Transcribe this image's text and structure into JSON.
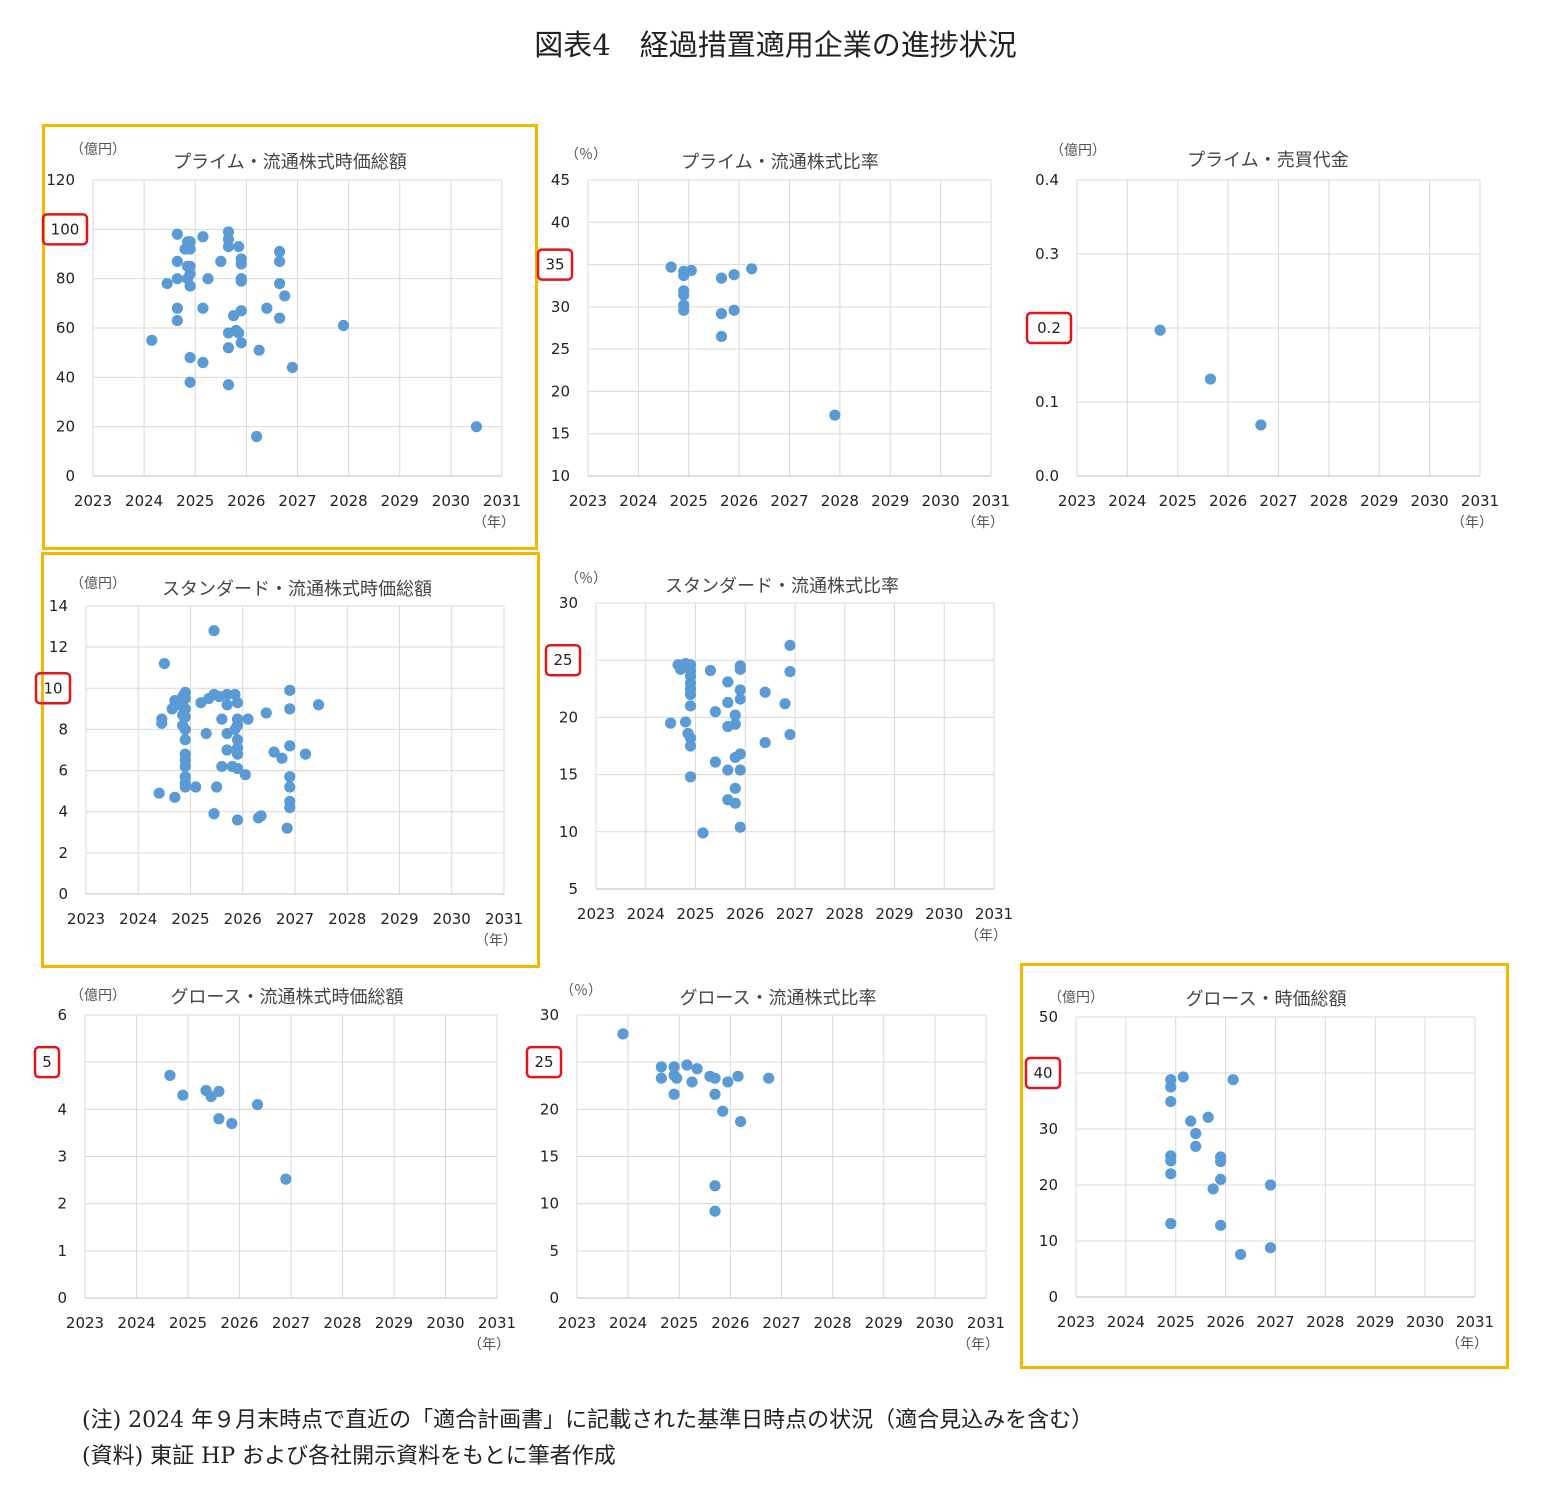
{
  "title": "図表4　経過措置適用企業の進捗状況",
  "notes": {
    "note1": "(注) 2024 年９月末時点で直近の「適合計画書」に記載された基準日時点の状況（適合見込みを含む）",
    "note2": "(資料) 東証 HP および各社開示資料をもとに筆者作成"
  },
  "colors": {
    "marker": "#5b9bd5",
    "highlight_frame": "#f5b800",
    "highlight_tick": "#e0161b",
    "grid": "#d9d9d9"
  },
  "chart_data": [
    {
      "id": "prime-float-mcap",
      "type": "scatter",
      "title": "プライム・流通株式時価総額",
      "unit": "（億円）",
      "xlabel": "（年）",
      "xlim": [
        2023,
        2031
      ],
      "ylim": [
        0,
        120
      ],
      "xticks": [
        2023,
        2024,
        2025,
        2026,
        2027,
        2028,
        2029,
        2030,
        2031
      ],
      "yticks": [
        0,
        20,
        40,
        60,
        80,
        100,
        120
      ],
      "ytick_labels": [
        "0",
        "20",
        "40",
        "60",
        "80",
        "100",
        "120"
      ],
      "highlight_tick": "100",
      "highlighted_chart": true,
      "points": [
        [
          2024.15,
          55
        ],
        [
          2024.45,
          78
        ],
        [
          2024.65,
          98
        ],
        [
          2024.65,
          87
        ],
        [
          2024.65,
          80
        ],
        [
          2024.65,
          68
        ],
        [
          2024.65,
          63
        ],
        [
          2024.8,
          92
        ],
        [
          2024.85,
          95
        ],
        [
          2024.85,
          85
        ],
        [
          2024.85,
          80
        ],
        [
          2024.9,
          95
        ],
        [
          2024.9,
          92
        ],
        [
          2024.9,
          85
        ],
        [
          2024.9,
          82
        ],
        [
          2024.9,
          77
        ],
        [
          2024.9,
          48
        ],
        [
          2024.9,
          38
        ],
        [
          2025.15,
          97
        ],
        [
          2025.15,
          68
        ],
        [
          2025.15,
          46
        ],
        [
          2025.25,
          80
        ],
        [
          2025.5,
          87
        ],
        [
          2025.65,
          99
        ],
        [
          2025.65,
          96
        ],
        [
          2025.65,
          93
        ],
        [
          2025.65,
          58
        ],
        [
          2025.65,
          52
        ],
        [
          2025.65,
          37
        ],
        [
          2025.75,
          65
        ],
        [
          2025.8,
          59
        ],
        [
          2025.85,
          93
        ],
        [
          2025.85,
          58
        ],
        [
          2025.9,
          88
        ],
        [
          2025.9,
          86
        ],
        [
          2025.9,
          80
        ],
        [
          2025.9,
          79
        ],
        [
          2025.9,
          67
        ],
        [
          2025.9,
          54
        ],
        [
          2026.2,
          16
        ],
        [
          2026.25,
          51
        ],
        [
          2026.4,
          68
        ],
        [
          2026.65,
          91
        ],
        [
          2026.65,
          87
        ],
        [
          2026.65,
          78
        ],
        [
          2026.65,
          64
        ],
        [
          2026.75,
          73
        ],
        [
          2026.9,
          44
        ],
        [
          2027.9,
          61
        ],
        [
          2030.5,
          20
        ]
      ]
    },
    {
      "id": "prime-float-ratio",
      "type": "scatter",
      "title": "プライム・流通株式比率",
      "unit": "（％）",
      "xlabel": "（年）",
      "xlim": [
        2023,
        2031
      ],
      "ylim": [
        10,
        45
      ],
      "xticks": [
        2023,
        2024,
        2025,
        2026,
        2027,
        2028,
        2029,
        2030,
        2031
      ],
      "yticks": [
        10,
        15,
        20,
        25,
        30,
        35,
        40,
        45
      ],
      "ytick_labels": [
        "10",
        "15",
        "20",
        "25",
        "30",
        "35",
        "40",
        "45"
      ],
      "highlight_tick": "35",
      "highlighted_chart": false,
      "points": [
        [
          2024.65,
          34.7
        ],
        [
          2024.9,
          34.2
        ],
        [
          2024.9,
          33.7
        ],
        [
          2024.9,
          31.9
        ],
        [
          2024.9,
          31.4
        ],
        [
          2024.9,
          30.2
        ],
        [
          2024.9,
          29.6
        ],
        [
          2025.05,
          34.3
        ],
        [
          2025.65,
          33.4
        ],
        [
          2025.65,
          29.2
        ],
        [
          2025.65,
          26.5
        ],
        [
          2025.9,
          33.8
        ],
        [
          2025.9,
          29.6
        ],
        [
          2026.25,
          34.5
        ],
        [
          2027.9,
          17.2
        ]
      ]
    },
    {
      "id": "prime-trading-value",
      "type": "scatter",
      "title": "プライム・売買代金",
      "unit": "（億円）",
      "xlabel": "（年）",
      "xlim": [
        2023,
        2031
      ],
      "ylim": [
        0,
        0.4
      ],
      "xticks": [
        2023,
        2024,
        2025,
        2026,
        2027,
        2028,
        2029,
        2030,
        2031
      ],
      "yticks": [
        0,
        0.1,
        0.2,
        0.3,
        0.4
      ],
      "ytick_labels": [
        "0.0",
        "0.1",
        "0.2",
        "0.3",
        "0.4"
      ],
      "highlight_tick": "0.2",
      "highlighted_chart": false,
      "points": [
        [
          2024.65,
          0.197
        ],
        [
          2025.65,
          0.131
        ],
        [
          2026.65,
          0.069
        ]
      ]
    },
    {
      "id": "standard-float-mcap",
      "type": "scatter",
      "title": "スタンダード・流通株式時価総額",
      "unit": "（億円）",
      "xlabel": "（年）",
      "xlim": [
        2023,
        2031
      ],
      "ylim": [
        0,
        14
      ],
      "xticks": [
        2023,
        2024,
        2025,
        2026,
        2027,
        2028,
        2029,
        2030,
        2031
      ],
      "yticks": [
        0,
        2,
        4,
        6,
        8,
        10,
        12,
        14
      ],
      "ytick_labels": [
        "0",
        "2",
        "4",
        "6",
        "8",
        "10",
        "12",
        "14"
      ],
      "highlight_tick": "10",
      "highlighted_chart": true,
      "points": [
        [
          2024.4,
          4.9
        ],
        [
          2024.45,
          8.3
        ],
        [
          2024.45,
          8.5
        ],
        [
          2024.5,
          11.2
        ],
        [
          2024.65,
          9.0
        ],
        [
          2024.7,
          9.4
        ],
        [
          2024.7,
          4.7
        ],
        [
          2024.8,
          9.2
        ],
        [
          2024.85,
          9.6
        ],
        [
          2024.85,
          8.7
        ],
        [
          2024.85,
          8.2
        ],
        [
          2024.9,
          9.8
        ],
        [
          2024.9,
          9.5
        ],
        [
          2024.9,
          9.0
        ],
        [
          2024.9,
          8.6
        ],
        [
          2024.9,
          8.0
        ],
        [
          2024.9,
          7.5
        ],
        [
          2024.9,
          6.8
        ],
        [
          2024.9,
          6.5
        ],
        [
          2024.9,
          6.2
        ],
        [
          2024.9,
          5.7
        ],
        [
          2024.9,
          5.4
        ],
        [
          2024.9,
          5.2
        ],
        [
          2025.1,
          5.2
        ],
        [
          2025.2,
          9.3
        ],
        [
          2025.3,
          7.8
        ],
        [
          2025.35,
          9.5
        ],
        [
          2025.45,
          9.7
        ],
        [
          2025.45,
          12.8
        ],
        [
          2025.45,
          3.9
        ],
        [
          2025.5,
          5.2
        ],
        [
          2025.55,
          9.6
        ],
        [
          2025.6,
          8.5
        ],
        [
          2025.6,
          6.2
        ],
        [
          2025.7,
          9.7
        ],
        [
          2025.7,
          9.2
        ],
        [
          2025.7,
          7.8
        ],
        [
          2025.7,
          7.0
        ],
        [
          2025.8,
          6.2
        ],
        [
          2025.85,
          9.7
        ],
        [
          2025.85,
          8.0
        ],
        [
          2025.9,
          9.3
        ],
        [
          2025.9,
          8.5
        ],
        [
          2025.9,
          8.2
        ],
        [
          2025.9,
          7.5
        ],
        [
          2025.9,
          7.1
        ],
        [
          2025.9,
          6.8
        ],
        [
          2025.9,
          6.1
        ],
        [
          2025.9,
          3.6
        ],
        [
          2026.05,
          5.8
        ],
        [
          2026.1,
          8.5
        ],
        [
          2026.3,
          3.7
        ],
        [
          2026.35,
          3.8
        ],
        [
          2026.45,
          8.8
        ],
        [
          2026.6,
          6.9
        ],
        [
          2026.75,
          6.6
        ],
        [
          2026.85,
          3.2
        ],
        [
          2026.9,
          9.9
        ],
        [
          2026.9,
          9.0
        ],
        [
          2026.9,
          7.2
        ],
        [
          2026.9,
          5.7
        ],
        [
          2026.9,
          5.2
        ],
        [
          2026.9,
          4.5
        ],
        [
          2026.9,
          4.2
        ],
        [
          2027.2,
          6.8
        ],
        [
          2027.45,
          9.2
        ]
      ]
    },
    {
      "id": "standard-float-ratio",
      "type": "scatter",
      "title": "スタンダード・流通株式比率",
      "unit": "（％）",
      "xlabel": "（年）",
      "xlim": [
        2023,
        2031
      ],
      "ylim": [
        5,
        30
      ],
      "xticks": [
        2023,
        2024,
        2025,
        2026,
        2027,
        2028,
        2029,
        2030,
        2031
      ],
      "yticks": [
        5,
        10,
        15,
        20,
        25,
        30
      ],
      "ytick_labels": [
        "5",
        "10",
        "15",
        "20",
        "25",
        "30"
      ],
      "highlight_tick": "25",
      "highlighted_chart": false,
      "points": [
        [
          2024.5,
          19.5
        ],
        [
          2024.65,
          24.6
        ],
        [
          2024.7,
          24.2
        ],
        [
          2024.8,
          24.7
        ],
        [
          2024.8,
          19.6
        ],
        [
          2024.85,
          24.5
        ],
        [
          2024.85,
          18.6
        ],
        [
          2024.9,
          24.6
        ],
        [
          2024.9,
          24.1
        ],
        [
          2024.9,
          23.6
        ],
        [
          2024.9,
          23.0
        ],
        [
          2024.9,
          22.5
        ],
        [
          2024.9,
          22.0
        ],
        [
          2024.9,
          21.0
        ],
        [
          2024.9,
          18.2
        ],
        [
          2024.9,
          17.5
        ],
        [
          2024.9,
          14.8
        ],
        [
          2025.15,
          9.9
        ],
        [
          2025.3,
          24.1
        ],
        [
          2025.4,
          20.5
        ],
        [
          2025.4,
          16.1
        ],
        [
          2025.65,
          23.1
        ],
        [
          2025.65,
          21.3
        ],
        [
          2025.65,
          19.2
        ],
        [
          2025.65,
          15.4
        ],
        [
          2025.65,
          12.8
        ],
        [
          2025.8,
          20.2
        ],
        [
          2025.8,
          19.4
        ],
        [
          2025.8,
          16.5
        ],
        [
          2025.8,
          13.8
        ],
        [
          2025.8,
          12.5
        ],
        [
          2025.9,
          24.5
        ],
        [
          2025.9,
          24.2
        ],
        [
          2025.9,
          22.4
        ],
        [
          2025.9,
          21.6
        ],
        [
          2025.9,
          16.8
        ],
        [
          2025.9,
          15.4
        ],
        [
          2025.9,
          10.4
        ],
        [
          2026.4,
          22.2
        ],
        [
          2026.4,
          17.8
        ],
        [
          2026.8,
          21.2
        ],
        [
          2026.9,
          26.3
        ],
        [
          2026.9,
          24.0
        ],
        [
          2026.9,
          18.5
        ]
      ]
    },
    {
      "id": "growth-float-mcap",
      "type": "scatter",
      "title": "グロース・流通株式時価総額",
      "unit": "（億円）",
      "xlabel": "（年）",
      "xlim": [
        2023,
        2031
      ],
      "ylim": [
        0,
        6
      ],
      "xticks": [
        2023,
        2024,
        2025,
        2026,
        2027,
        2028,
        2029,
        2030,
        2031
      ],
      "yticks": [
        0,
        1,
        2,
        3,
        4,
        5,
        6
      ],
      "ytick_labels": [
        "0",
        "1",
        "2",
        "3",
        "4",
        "5",
        "6"
      ],
      "highlight_tick": "5",
      "highlighted_chart": false,
      "points": [
        [
          2024.65,
          4.72
        ],
        [
          2024.9,
          4.3
        ],
        [
          2025.35,
          4.4
        ],
        [
          2025.45,
          4.27
        ],
        [
          2025.6,
          4.38
        ],
        [
          2025.6,
          3.8
        ],
        [
          2025.85,
          3.7
        ],
        [
          2026.35,
          4.1
        ],
        [
          2026.9,
          2.52
        ]
      ]
    },
    {
      "id": "growth-float-ratio",
      "type": "scatter",
      "title": "グロース・流通株式比率",
      "unit": "（％）",
      "xlabel": "（年）",
      "xlim": [
        2023,
        2031
      ],
      "ylim": [
        0,
        30
      ],
      "xticks": [
        2023,
        2024,
        2025,
        2026,
        2027,
        2028,
        2029,
        2030,
        2031
      ],
      "yticks": [
        0,
        5,
        10,
        15,
        20,
        25,
        30
      ],
      "ytick_labels": [
        "0",
        "5",
        "10",
        "15",
        "20",
        "25",
        "30"
      ],
      "highlight_tick": "25",
      "highlighted_chart": false,
      "points": [
        [
          2023.9,
          28.0
        ],
        [
          2024.65,
          24.5
        ],
        [
          2024.65,
          23.3
        ],
        [
          2024.9,
          24.5
        ],
        [
          2024.9,
          23.6
        ],
        [
          2024.9,
          21.6
        ],
        [
          2024.95,
          23.3
        ],
        [
          2025.15,
          24.7
        ],
        [
          2025.25,
          22.9
        ],
        [
          2025.35,
          24.3
        ],
        [
          2025.6,
          23.5
        ],
        [
          2025.7,
          23.3
        ],
        [
          2025.7,
          21.6
        ],
        [
          2025.7,
          11.9
        ],
        [
          2025.7,
          9.2
        ],
        [
          2025.85,
          19.8
        ],
        [
          2025.95,
          22.9
        ],
        [
          2026.15,
          23.5
        ],
        [
          2026.2,
          18.7
        ],
        [
          2026.75,
          23.3
        ]
      ]
    },
    {
      "id": "growth-mcap",
      "type": "scatter",
      "title": "グロース・時価総額",
      "unit": "（億円）",
      "xlabel": "（年）",
      "xlim": [
        2023,
        2031
      ],
      "ylim": [
        0,
        50
      ],
      "xticks": [
        2023,
        2024,
        2025,
        2026,
        2027,
        2028,
        2029,
        2030,
        2031
      ],
      "yticks": [
        0,
        10,
        20,
        30,
        40,
        50
      ],
      "ytick_labels": [
        "0",
        "10",
        "20",
        "30",
        "40",
        "50"
      ],
      "highlight_tick": "40",
      "highlighted_chart": true,
      "points": [
        [
          2024.9,
          38.8
        ],
        [
          2024.9,
          37.5
        ],
        [
          2024.9,
          34.9
        ],
        [
          2024.9,
          25.2
        ],
        [
          2024.9,
          24.3
        ],
        [
          2024.9,
          22.0
        ],
        [
          2024.9,
          13.1
        ],
        [
          2025.15,
          39.3
        ],
        [
          2025.3,
          31.4
        ],
        [
          2025.4,
          29.2
        ],
        [
          2025.4,
          26.9
        ],
        [
          2025.65,
          32.1
        ],
        [
          2025.75,
          19.3
        ],
        [
          2025.9,
          25.0
        ],
        [
          2025.9,
          24.2
        ],
        [
          2025.9,
          21.0
        ],
        [
          2025.9,
          12.8
        ],
        [
          2026.15,
          38.8
        ],
        [
          2026.3,
          7.6
        ],
        [
          2026.9,
          20.0
        ],
        [
          2026.9,
          8.8
        ]
      ]
    }
  ]
}
